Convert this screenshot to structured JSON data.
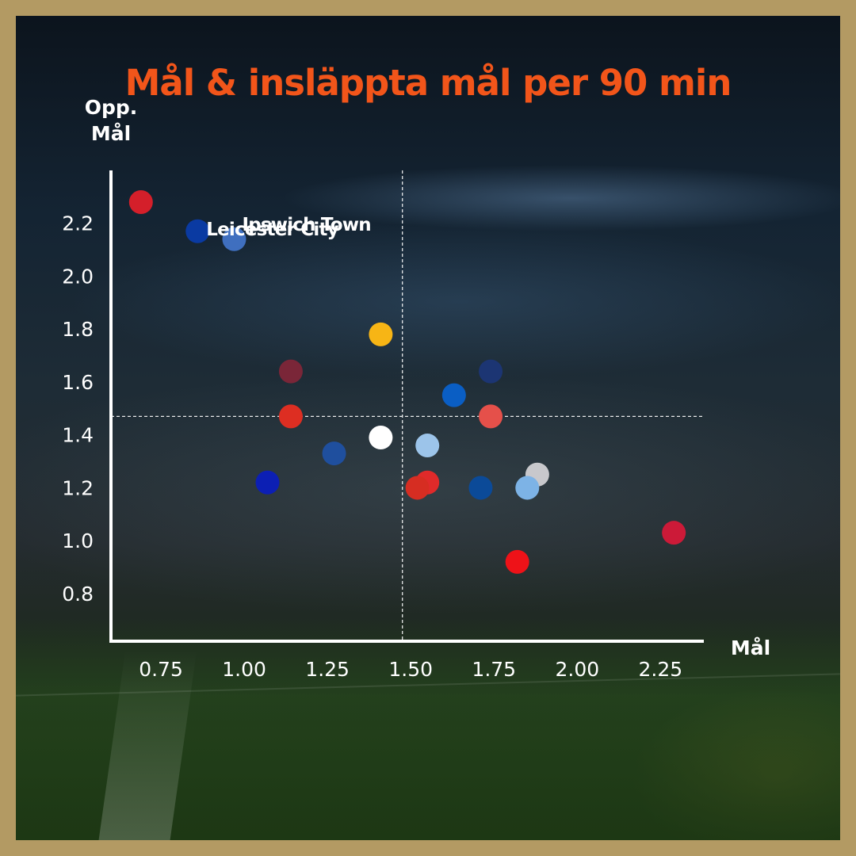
{
  "chart_data": {
    "type": "scatter",
    "title": "Mål & insläppta mål per 90 min",
    "xlabel": "Mål",
    "ylabel_lines": [
      "Opp.",
      "Mål"
    ],
    "xlim": [
      0.6,
      2.38
    ],
    "ylim": [
      0.62,
      2.4
    ],
    "x_ticks": [
      0.75,
      1.0,
      1.25,
      1.5,
      1.75,
      2.0,
      2.25
    ],
    "y_ticks": [
      0.8,
      1.0,
      1.2,
      1.4,
      1.6,
      1.8,
      2.0,
      2.2
    ],
    "reference_lines": {
      "x": 1.475,
      "y": 1.47
    },
    "grid": false,
    "points": [
      {
        "x": 0.69,
        "y": 2.28,
        "color": "#d41f2a"
      },
      {
        "x": 0.86,
        "y": 2.17,
        "color": "#0a3aa2",
        "label": "Leicester City"
      },
      {
        "x": 0.97,
        "y": 2.14,
        "color": "#3f6fbf",
        "label": "Ipswich Town"
      },
      {
        "x": 1.41,
        "y": 1.78,
        "color": "#f7b515"
      },
      {
        "x": 1.14,
        "y": 1.64,
        "color": "#7a2638"
      },
      {
        "x": 1.14,
        "y": 1.47,
        "color": "#dd2e22"
      },
      {
        "x": 1.27,
        "y": 1.33,
        "color": "#1f4f9e"
      },
      {
        "x": 1.07,
        "y": 1.22,
        "color": "#0c1fb4"
      },
      {
        "x": 1.41,
        "y": 1.39,
        "color": "#ffffff"
      },
      {
        "x": 1.55,
        "y": 1.36,
        "color": "#9cc4ea"
      },
      {
        "x": 1.55,
        "y": 1.22,
        "color": "#e02a2a"
      },
      {
        "x": 1.52,
        "y": 1.2,
        "color": "#d62d22"
      },
      {
        "x": 1.63,
        "y": 1.55,
        "color": "#0a5ec4"
      },
      {
        "x": 1.74,
        "y": 1.64,
        "color": "#1c3573"
      },
      {
        "x": 1.74,
        "y": 1.47,
        "color": "#e5504a"
      },
      {
        "x": 1.71,
        "y": 1.2,
        "color": "#0b4a98"
      },
      {
        "x": 1.88,
        "y": 1.25,
        "color": "#c8c8cc"
      },
      {
        "x": 1.85,
        "y": 1.2,
        "color": "#7db3e6"
      },
      {
        "x": 1.82,
        "y": 0.92,
        "color": "#ee1218"
      },
      {
        "x": 2.29,
        "y": 1.03,
        "color": "#cc1a38"
      }
    ]
  }
}
